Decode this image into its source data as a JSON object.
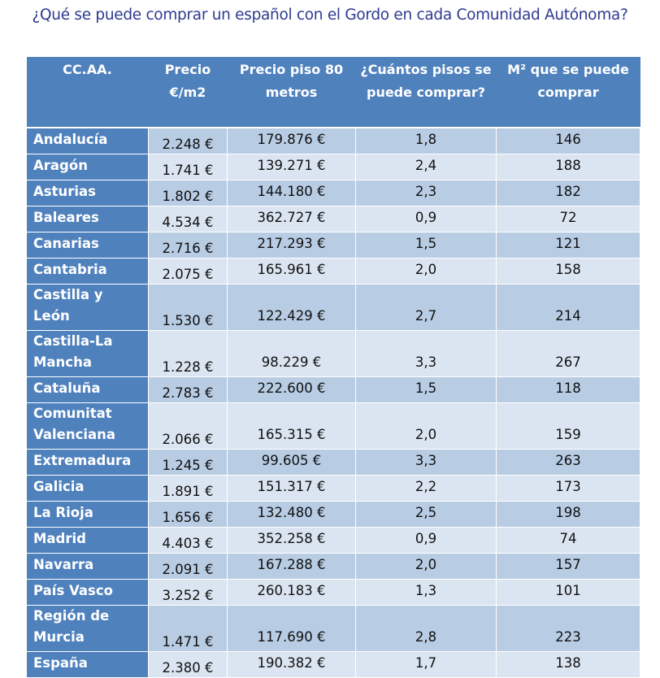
{
  "title": "¿Qué se puede comprar un español con el Gordo en cada Comunidad Autónoma?",
  "colors": {
    "header": "#4f81bd",
    "row_dark": "#b8cce4",
    "row_light": "#dbe5f1",
    "title": "#2d3a8f"
  },
  "headers": [
    "CC.AA.",
    "Precio €/m2",
    "Precio piso 80 metros",
    "¿Cuántos pisos se puede comprar?",
    "M² que se puede comprar"
  ],
  "rows": [
    [
      "Andalucía",
      "2.248 €",
      "179.876 €",
      "1,8",
      "146"
    ],
    [
      "Aragón",
      "1.741 €",
      "139.271 €",
      "2,4",
      "188"
    ],
    [
      "Asturias",
      "1.802 €",
      "144.180 €",
      "2,3",
      "182"
    ],
    [
      "Baleares",
      "4.534 €",
      "362.727 €",
      "0,9",
      "72"
    ],
    [
      "Canarias",
      "2.716 €",
      "217.293 €",
      "1,5",
      "121"
    ],
    [
      "Cantabria",
      "2.075 €",
      "165.961 €",
      "2,0",
      "158"
    ],
    [
      "Castilla y León",
      "1.530 €",
      "122.429 €",
      "2,7",
      "214"
    ],
    [
      "Castilla-La Mancha",
      "1.228 €",
      "98.229 €",
      "3,3",
      "267"
    ],
    [
      "Cataluña",
      "2.783 €",
      "222.600 €",
      "1,5",
      "118"
    ],
    [
      "Comunitat Valenciana",
      "2.066 €",
      "165.315 €",
      "2,0",
      "159"
    ],
    [
      "Extremadura",
      "1.245 €",
      "99.605 €",
      "3,3",
      "263"
    ],
    [
      "Galicia",
      "1.891 €",
      "151.317 €",
      "2,2",
      "173"
    ],
    [
      "La Rioja",
      "1.656 €",
      "132.480 €",
      "2,5",
      "198"
    ],
    [
      "Madrid",
      "4.403 €",
      "352.258 €",
      "0,9",
      "74"
    ],
    [
      "Navarra",
      "2.091 €",
      "167.288 €",
      "2,0",
      "157"
    ],
    [
      "País Vasco",
      "3.252 €",
      "260.183 €",
      "1,3",
      "101"
    ],
    [
      "Región de Murcia",
      "1.471 €",
      "117.690 €",
      "2,8",
      "223"
    ],
    [
      "España",
      "2.380 €",
      "190.382 €",
      "1,7",
      "138"
    ]
  ]
}
